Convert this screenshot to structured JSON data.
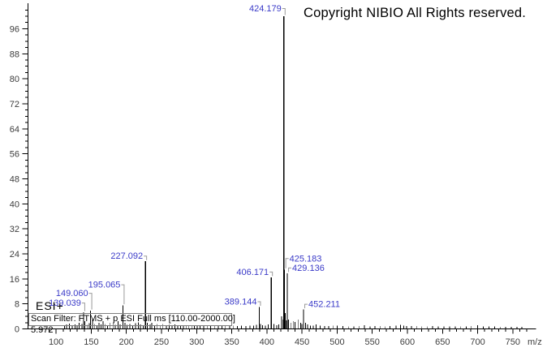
{
  "header": {
    "copyright": "Copyright NIBIO All Rights reserved."
  },
  "annotations": {
    "ionization_label": "ESI+",
    "scan_filter": "Scan Filter: FTMS + p ESI Full ms [110.00-2000.00]",
    "retention_time": "5.972"
  },
  "colors": {
    "axis": "#000000",
    "tick_label": "#3d3d3d",
    "peak": "#000000",
    "peak_label": "#3a3ac8",
    "bracket": "#9a9a9a",
    "copyright": "#000000"
  },
  "chart_data": {
    "type": "bar",
    "subtype": "mass-spectrum-stick-plot",
    "title": "",
    "xlabel": "m/z",
    "ylabel": "",
    "xlim": [
      60,
      775
    ],
    "ylim": [
      0,
      104
    ],
    "grid": false,
    "x_ticks": {
      "major_start": 100,
      "major_step": 50,
      "major_end": 750,
      "minor_step": 10,
      "minor_start": 70,
      "minor_end": 770
    },
    "y_ticks": {
      "major_start": 0,
      "major_step": 8,
      "major_end": 96,
      "minor_step": 2,
      "minor_end": 102
    },
    "labeled_peaks": [
      {
        "label": "139.039",
        "mz": 139.039,
        "intensity": 5.3,
        "side": "left",
        "rise": 8
      },
      {
        "label": "149.060",
        "mz": 149.06,
        "intensity": 5.8,
        "side": "left",
        "rise": 18
      },
      {
        "label": "195.065",
        "mz": 195.065,
        "intensity": 7.5,
        "side": "left",
        "rise": 22
      },
      {
        "label": "227.092",
        "mz": 227.092,
        "intensity": 21.6,
        "side": "left",
        "rise": 3
      },
      {
        "label": "389.144",
        "mz": 389.144,
        "intensity": 7.0,
        "side": "left",
        "rise": 3
      },
      {
        "label": "406.171",
        "mz": 406.171,
        "intensity": 16.5,
        "side": "left",
        "rise": 3
      },
      {
        "label": "424.179",
        "mz": 424.179,
        "intensity": 100,
        "side": "left",
        "rise": 6
      },
      {
        "label": "425.183",
        "mz": 425.183,
        "intensity": 19.0,
        "side": "right",
        "rise": 10
      },
      {
        "label": "429.136",
        "mz": 429.136,
        "intensity": 17.8,
        "side": "right",
        "rise": 3
      },
      {
        "label": "452.211",
        "mz": 452.211,
        "intensity": 6.2,
        "side": "right",
        "rise": 3
      }
    ],
    "noise_peaks": [
      [
        112,
        1.1
      ],
      [
        115,
        1.4
      ],
      [
        119,
        1.7
      ],
      [
        123,
        1.2
      ],
      [
        127,
        1.4
      ],
      [
        130,
        1.1
      ],
      [
        133,
        2.0
      ],
      [
        137,
        1.6
      ],
      [
        141,
        2.4
      ],
      [
        144,
        1.3
      ],
      [
        147,
        1.8
      ],
      [
        152,
        3.2
      ],
      [
        155,
        1.6
      ],
      [
        158,
        1.2
      ],
      [
        161,
        2.0
      ],
      [
        164,
        1.4
      ],
      [
        167,
        2.4
      ],
      [
        170,
        1.5
      ],
      [
        173,
        1.2
      ],
      [
        177,
        1.9
      ],
      [
        181,
        2.1
      ],
      [
        184,
        1.3
      ],
      [
        188,
        2.5
      ],
      [
        191,
        1.4
      ],
      [
        198,
        2.0
      ],
      [
        201,
        1.3
      ],
      [
        205,
        1.6
      ],
      [
        209,
        1.2
      ],
      [
        213,
        1.8
      ],
      [
        217,
        2.1
      ],
      [
        220,
        1.4
      ],
      [
        224,
        1.2
      ],
      [
        230,
        1.9
      ],
      [
        234,
        1.4
      ],
      [
        236,
        2.0
      ],
      [
        240,
        1.2
      ],
      [
        244,
        1.5
      ],
      [
        248,
        1.2
      ],
      [
        252,
        1.6
      ],
      [
        257,
        1.1
      ],
      [
        261,
        1.3
      ],
      [
        265,
        1.0
      ],
      [
        269,
        1.4
      ],
      [
        273,
        1.1
      ],
      [
        277,
        1.0
      ],
      [
        281,
        1.2
      ],
      [
        285,
        1.0
      ],
      [
        289,
        1.1
      ],
      [
        293,
        1.0
      ],
      [
        297,
        1.2
      ],
      [
        301,
        1.0
      ],
      [
        305,
        1.1
      ],
      [
        310,
        1.0
      ],
      [
        315,
        0.9
      ],
      [
        320,
        1.0
      ],
      [
        326,
        0.9
      ],
      [
        331,
        1.0
      ],
      [
        336,
        0.9
      ],
      [
        341,
        1.0
      ],
      [
        347,
        0.9
      ],
      [
        352,
        1.0
      ],
      [
        358,
        0.9
      ],
      [
        364,
        1.0
      ],
      [
        370,
        0.9
      ],
      [
        376,
        1.0
      ],
      [
        381,
        1.1
      ],
      [
        385,
        1.3
      ],
      [
        391,
        1.6
      ],
      [
        394,
        1.2
      ],
      [
        398,
        1.1
      ],
      [
        402,
        1.4
      ],
      [
        410,
        1.5
      ],
      [
        414,
        1.2
      ],
      [
        417,
        1.4
      ],
      [
        421,
        4.0
      ],
      [
        423,
        3.0
      ],
      [
        426,
        5.0
      ],
      [
        428,
        2.7
      ],
      [
        431,
        3.0
      ],
      [
        434,
        2.0
      ],
      [
        438,
        2.5
      ],
      [
        440,
        2.2
      ],
      [
        445,
        3.0
      ],
      [
        448,
        2.0
      ],
      [
        450,
        1.5
      ],
      [
        455,
        2.0
      ],
      [
        458,
        1.4
      ],
      [
        462,
        1.1
      ],
      [
        466,
        1.0
      ],
      [
        470,
        1.4
      ],
      [
        476,
        1.0
      ],
      [
        482,
        0.9
      ],
      [
        488,
        0.9
      ],
      [
        494,
        1.1
      ],
      [
        500,
        1.0
      ],
      [
        508,
        0.9
      ],
      [
        516,
        0.8
      ],
      [
        524,
        0.8
      ],
      [
        531,
        0.9
      ],
      [
        539,
        1.2
      ],
      [
        547,
        0.8
      ],
      [
        554,
        0.9
      ],
      [
        561,
        0.9
      ],
      [
        568,
        0.8
      ],
      [
        575,
        0.9
      ],
      [
        584,
        1.0
      ],
      [
        590,
        1.3
      ],
      [
        595,
        1.0
      ],
      [
        599,
        0.9
      ],
      [
        606,
        0.9
      ],
      [
        613,
        0.9
      ],
      [
        620,
        0.8
      ],
      [
        628,
        0.8
      ],
      [
        636,
        0.9
      ],
      [
        644,
        0.8
      ],
      [
        652,
        0.8
      ],
      [
        660,
        0.8
      ],
      [
        668,
        0.8
      ],
      [
        676,
        0.8
      ],
      [
        684,
        0.8
      ],
      [
        691,
        0.9
      ],
      [
        700,
        1.2
      ],
      [
        708,
        0.8
      ],
      [
        716,
        0.8
      ],
      [
        724,
        0.8
      ],
      [
        732,
        0.7
      ],
      [
        740,
        0.7
      ],
      [
        748,
        0.7
      ],
      [
        756,
        0.7
      ],
      [
        763,
        0.7
      ]
    ]
  }
}
